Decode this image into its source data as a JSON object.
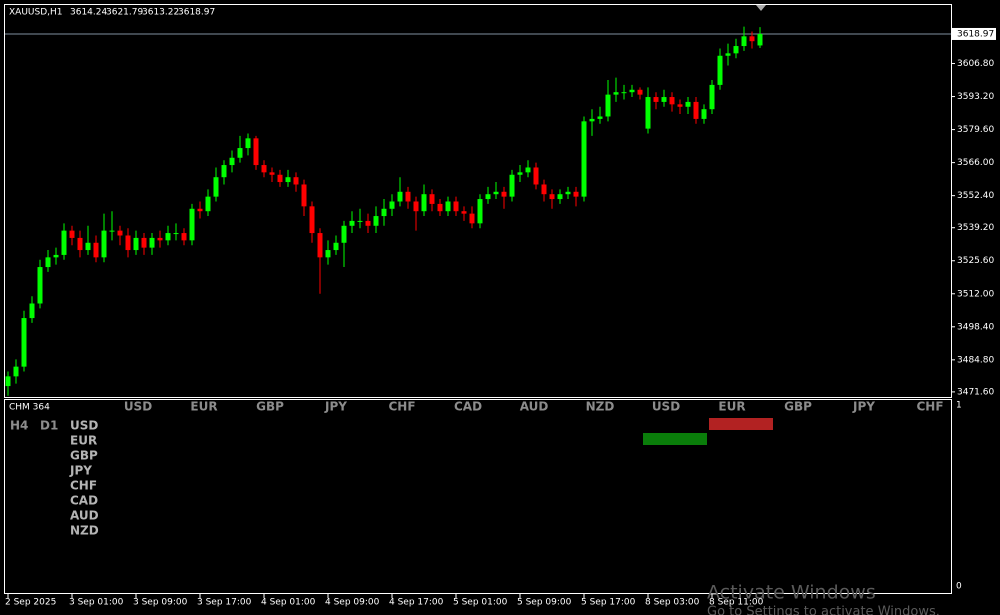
{
  "chart_data": {
    "type": "candlestick",
    "title": "XAUUSD,H1",
    "up_color": "#00ff00",
    "down_color": "#ff0000",
    "grid": false,
    "categories": [
      "2 Sep 2025",
      null,
      null,
      null,
      null,
      null,
      null,
      null,
      "3 Sep 01:00",
      null,
      null,
      null,
      null,
      null,
      null,
      null,
      "3 Sep 09:00",
      null,
      null,
      null,
      null,
      null,
      null,
      null,
      "3 Sep 17:00",
      null,
      null,
      null,
      null,
      null,
      null,
      null,
      "4 Sep 01:00",
      null,
      null,
      null,
      null,
      null,
      null,
      null,
      "4 Sep 09:00",
      null,
      null,
      null,
      null,
      null,
      null,
      null,
      "4 Sep 17:00",
      null,
      null,
      null,
      null,
      null,
      null,
      null,
      "5 Sep 01:00",
      null,
      null,
      null,
      null,
      null,
      null,
      null,
      "5 Sep 09:00",
      null,
      null,
      null,
      null,
      null,
      null,
      null,
      "5 Sep 17:00",
      null,
      null,
      null,
      null,
      null,
      null,
      null,
      "8 Sep 03:00",
      null,
      null,
      null,
      null,
      null,
      null,
      null,
      "8 Sep 11:00",
      null,
      null,
      null,
      null,
      null,
      null
    ],
    "open": [
      3474,
      3478,
      3482,
      3502,
      3508,
      3523,
      3527,
      3528,
      3538,
      3535,
      3530,
      3533,
      3527,
      3538,
      3538,
      3536,
      3530,
      3535,
      3531,
      3535,
      3534,
      3537,
      3537,
      3534,
      3547,
      3546,
      3552,
      3560,
      3565,
      3568,
      3572,
      3576,
      3565,
      3562,
      3561,
      3558,
      3560,
      3557,
      3548,
      3537,
      3527,
      3530,
      3533,
      3540,
      3542,
      3542,
      3540,
      3544,
      3547,
      3550,
      3554,
      3550,
      3546,
      3553,
      3549,
      3546,
      3550,
      3546,
      3545,
      3541,
      3551,
      3553,
      3554,
      3552,
      3561,
      3562,
      3564,
      3557,
      3553,
      3551,
      3553,
      3554,
      3552,
      3583,
      3584,
      3585,
      3594,
      3595,
      3595,
      3596,
      3580,
      3593,
      3591,
      3593,
      3590,
      3589,
      3591,
      3584,
      3588,
      3598,
      3610,
      3611,
      3614,
      3618,
      3614.24
    ],
    "high": [
      3480,
      3485,
      3505,
      3511,
      3526,
      3530,
      3531,
      3541,
      3540,
      3538,
      3540,
      3536,
      3545,
      3546,
      3540,
      3539,
      3538,
      3537,
      3537,
      3538,
      3540,
      3541,
      3539,
      3549,
      3550,
      3555,
      3564,
      3567,
      3571,
      3577,
      3578,
      3577,
      3567,
      3564,
      3563,
      3563,
      3562,
      3559,
      3550,
      3539,
      3534,
      3536,
      3542,
      3546,
      3547,
      3545,
      3548,
      3551,
      3553,
      3560,
      3556,
      3552,
      3557,
      3555,
      3551,
      3552,
      3552,
      3548,
      3548,
      3553,
      3556,
      3558,
      3556,
      3563,
      3565,
      3567,
      3566,
      3559,
      3555,
      3555,
      3556,
      3556,
      3585,
      3588,
      3589,
      3600,
      3601,
      3598,
      3598,
      3597,
      3597,
      3595,
      3596,
      3595,
      3592,
      3593,
      3593,
      3590,
      3600,
      3613,
      3615,
      3617,
      3622,
      3620,
      3621.79
    ],
    "low": [
      3470,
      3475,
      3480,
      3500,
      3506,
      3521,
      3524,
      3526,
      3532,
      3527,
      3528,
      3525,
      3525,
      3534,
      3532,
      3527,
      3528,
      3528,
      3528,
      3531,
      3532,
      3534,
      3532,
      3532,
      3543,
      3544,
      3550,
      3557,
      3562,
      3566,
      3569,
      3563,
      3560,
      3558,
      3556,
      3556,
      3554,
      3544,
      3533,
      3512,
      3524,
      3528,
      3523,
      3537,
      3539,
      3537,
      3537,
      3540,
      3544,
      3548,
      3547,
      3538,
      3544,
      3546,
      3544,
      3544,
      3544,
      3542,
      3539,
      3539,
      3549,
      3551,
      3547,
      3550,
      3558,
      3560,
      3555,
      3550,
      3547,
      3549,
      3551,
      3548,
      3550,
      3577,
      3582,
      3583,
      3591,
      3592,
      3593,
      3592,
      3578,
      3588,
      3589,
      3587,
      3586,
      3586,
      3582,
      3582,
      3586,
      3596,
      3606,
      3609,
      3612,
      3613,
      3613.22
    ],
    "close": [
      3478,
      3482,
      3502,
      3508,
      3523,
      3527,
      3528,
      3538,
      3535,
      3530,
      3533,
      3527,
      3538,
      3538,
      3536,
      3530,
      3535,
      3531,
      3535,
      3534,
      3537,
      3537,
      3534,
      3547,
      3546,
      3552,
      3560,
      3565,
      3568,
      3572,
      3576,
      3565,
      3562,
      3561,
      3558,
      3560,
      3557,
      3548,
      3537,
      3527,
      3530,
      3533,
      3540,
      3542,
      3542,
      3540,
      3544,
      3547,
      3550,
      3554,
      3550,
      3546,
      3553,
      3549,
      3546,
      3550,
      3546,
      3545,
      3541,
      3551,
      3553,
      3554,
      3552,
      3561,
      3562,
      3564,
      3557,
      3553,
      3551,
      3553,
      3554,
      3552,
      3583,
      3584,
      3585,
      3594,
      3595,
      3595,
      3596,
      3594,
      3593,
      3591,
      3593,
      3590,
      3589,
      3591,
      3584,
      3588,
      3598,
      3610,
      3611,
      3614,
      3618,
      3616,
      3618.97
    ],
    "ylim": [
      3469.5,
      3630.9
    ],
    "yticks": [
      {
        "value": 3471.6,
        "label": "3471.60"
      },
      {
        "value": 3484.8,
        "label": "3484.80"
      },
      {
        "value": 3498.4,
        "label": "3498.40"
      },
      {
        "value": 3512,
        "label": "3512.00"
      },
      {
        "value": 3525.6,
        "label": "3525.60"
      },
      {
        "value": 3539.2,
        "label": "3539.20"
      },
      {
        "value": 3552.4,
        "label": "3552.40"
      },
      {
        "value": 3566,
        "label": "3566.00"
      },
      {
        "value": 3579.6,
        "label": "3579.60"
      },
      {
        "value": 3593.2,
        "label": "3593.20"
      },
      {
        "value": 3606.8,
        "label": "3606.80"
      }
    ]
  },
  "indicator": {
    "name": "CHM 364",
    "timeframes": [
      "H4",
      "D1"
    ],
    "columns": [
      "USD",
      "EUR",
      "GBP",
      "JPY",
      "CHF",
      "CAD",
      "AUD",
      "NZD",
      "USD",
      "EUR",
      "GBP",
      "JPY",
      "CHF"
    ],
    "rows": [
      "USD",
      "EUR",
      "GBP",
      "JPY",
      "CHF",
      "CAD",
      "AUD",
      "NZD"
    ],
    "scale": [
      "1",
      "0"
    ]
  },
  "watermark": {
    "title": "Activate Windows",
    "text": "Go to Settings to activate Windows."
  }
}
